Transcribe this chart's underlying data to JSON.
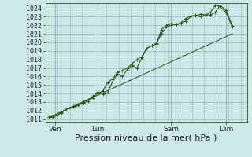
{
  "background_color": "#cce8e8",
  "grid_color": "#99bbbb",
  "line_color": "#2d5a1b",
  "ylabel_ticks": [
    1011,
    1012,
    1013,
    1014,
    1015,
    1016,
    1017,
    1018,
    1019,
    1020,
    1021,
    1022,
    1023,
    1024
  ],
  "xlabel": "Pression niveau de la mer( hPa )",
  "xlabel_fontsize": 8,
  "tick_fontsize": 6,
  "ylim": [
    1010.6,
    1024.6
  ],
  "xlim": [
    -0.3,
    16.2
  ],
  "day_labels": [
    "Ven",
    "Lun",
    "Sam",
    "Dim"
  ],
  "day_positions": [
    0.5,
    4.0,
    10.0,
    14.5
  ],
  "series1_x": [
    0.0,
    0.3,
    0.6,
    1.0,
    1.3,
    1.6,
    2.0,
    2.4,
    2.8,
    3.2,
    3.6,
    4.0,
    4.4,
    4.8,
    5.2,
    5.6,
    6.0,
    6.4,
    6.8,
    7.2,
    7.6,
    8.0,
    8.4,
    8.8,
    9.2,
    9.6,
    10.0,
    10.4,
    10.8,
    11.2,
    11.6,
    12.0,
    12.4,
    12.8,
    13.2,
    13.6,
    14.0,
    14.5,
    15.0
  ],
  "series1_y": [
    1011.2,
    1011.3,
    1011.5,
    1011.8,
    1012.0,
    1012.3,
    1012.5,
    1012.7,
    1013.0,
    1013.3,
    1013.5,
    1014.2,
    1013.9,
    1014.1,
    1015.4,
    1016.3,
    1016.0,
    1016.8,
    1017.3,
    1017.0,
    1018.2,
    1019.3,
    1019.6,
    1019.8,
    1021.5,
    1022.0,
    1022.2,
    1022.1,
    1022.2,
    1022.5,
    1023.0,
    1023.2,
    1023.0,
    1023.2,
    1023.5,
    1024.3,
    1024.2,
    1023.5,
    1021.8
  ],
  "series2_x": [
    0.0,
    0.3,
    0.6,
    1.0,
    1.3,
    1.6,
    2.0,
    2.4,
    2.8,
    3.2,
    3.6,
    4.0,
    4.4,
    4.8,
    5.2,
    5.6,
    6.0,
    6.4,
    6.8,
    7.2,
    7.6,
    8.0,
    8.4,
    8.8,
    9.2,
    9.6,
    10.0,
    10.4,
    10.8,
    11.2,
    11.6,
    12.0,
    12.4,
    12.8,
    13.2,
    13.6,
    14.0,
    14.5,
    15.0
  ],
  "series2_y": [
    1011.2,
    1011.2,
    1011.4,
    1011.7,
    1012.1,
    1012.3,
    1012.4,
    1012.6,
    1012.9,
    1013.1,
    1013.7,
    1014.0,
    1014.3,
    1015.3,
    1015.7,
    1016.5,
    1016.7,
    1017.0,
    1017.5,
    1018.0,
    1018.3,
    1019.3,
    1019.6,
    1019.9,
    1021.0,
    1021.8,
    1022.0,
    1022.1,
    1022.3,
    1022.8,
    1023.1,
    1023.1,
    1023.3,
    1023.2,
    1023.2,
    1023.5,
    1024.3,
    1023.8,
    1021.9
  ],
  "trend_x": [
    0.0,
    15.0
  ],
  "trend_y": [
    1011.2,
    1021.0
  ],
  "vline_positions": [
    0.5,
    4.0,
    10.0,
    14.5
  ]
}
